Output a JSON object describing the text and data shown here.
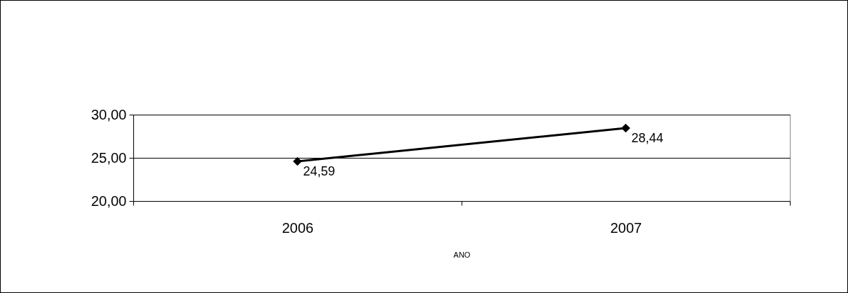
{
  "chart_data": {
    "type": "line",
    "xlabel": "ANO",
    "categories": [
      "2006",
      "2007"
    ],
    "series": [
      {
        "color": "#000000",
        "values": [
          24.59,
          28.44
        ],
        "value_labels": [
          "24,59",
          "28,44"
        ]
      }
    ],
    "ylim": [
      20,
      30
    ],
    "yticks": [
      {
        "value": 20,
        "label": "20,00"
      },
      {
        "value": 25,
        "label": "25,00"
      },
      {
        "value": 30,
        "label": "30,00"
      }
    ],
    "grid": "y",
    "marker": "diamond",
    "line_style": "solid",
    "legend": false
  }
}
